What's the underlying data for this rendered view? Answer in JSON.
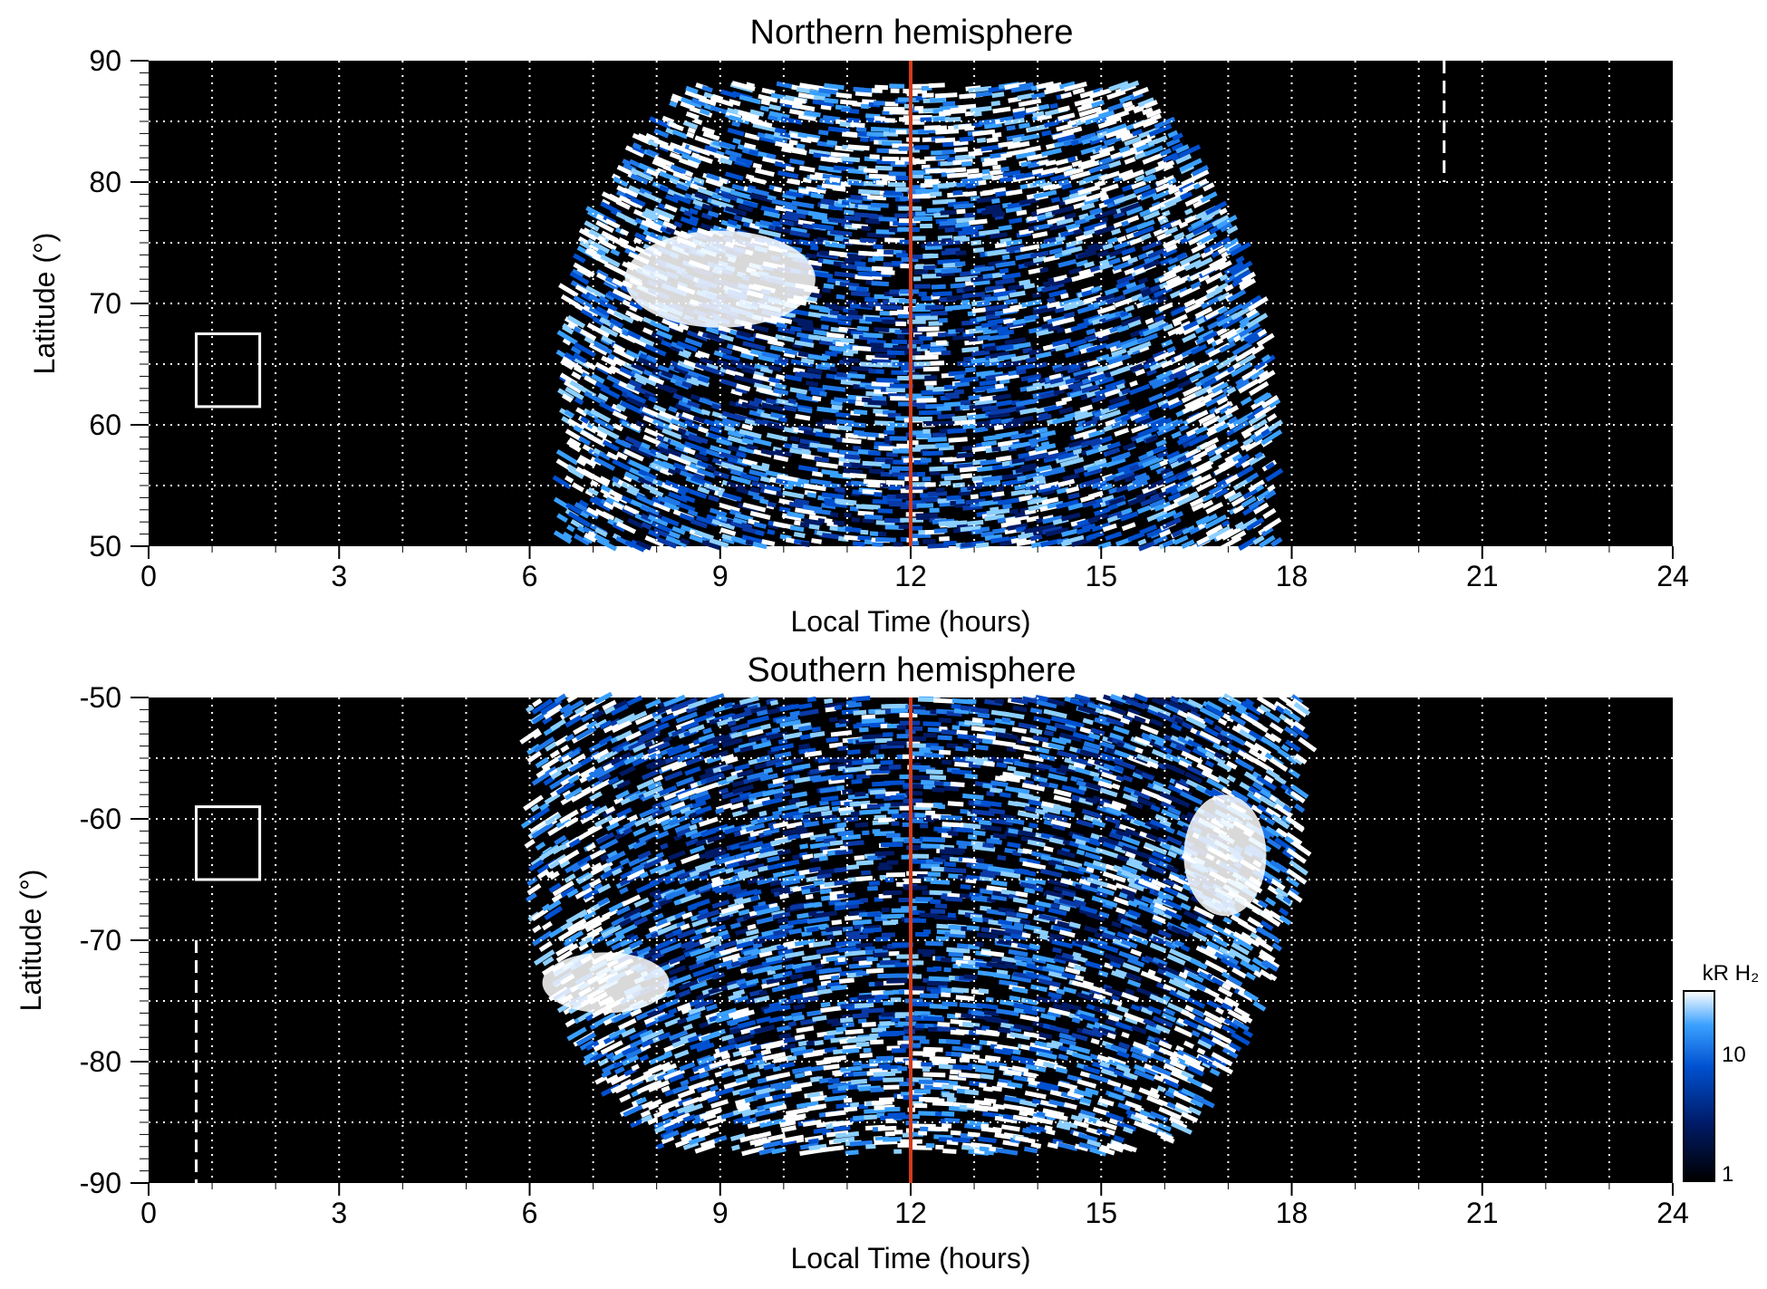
{
  "chart_data": [
    {
      "type": "heatmap",
      "title": "Northern hemisphere",
      "xlabel": "Local Time (hours)",
      "ylabel": "Latitude (°)",
      "xlim": [
        0,
        24
      ],
      "ylim": [
        50,
        90
      ],
      "x_ticks": [
        "0",
        "3",
        "6",
        "9",
        "12",
        "15",
        "18",
        "21",
        "24"
      ],
      "y_ticks": [
        "50",
        "60",
        "70",
        "80",
        "90"
      ],
      "grid": true,
      "background": "#000000",
      "emission_extent": {
        "local_time": [
          6.5,
          18.1
        ],
        "latitude": [
          50,
          88
        ]
      },
      "reference_line": {
        "local_time": 12,
        "color": "#d43a1a"
      },
      "dashed_line": {
        "local_time": 20.4,
        "latitude": [
          80,
          90
        ]
      },
      "box": {
        "local_time": [
          0.75,
          1.75
        ],
        "latitude": [
          61.5,
          67.5
        ]
      },
      "bright_regions": [
        {
          "local_time": [
            7.5,
            10.5
          ],
          "latitude": [
            68,
            76
          ]
        }
      ]
    },
    {
      "type": "heatmap",
      "title": "Southern hemisphere",
      "xlabel": "Local Time (hours)",
      "ylabel": "Latitude (°)",
      "xlim": [
        0,
        24
      ],
      "ylim": [
        -90,
        -50
      ],
      "x_ticks": [
        "0",
        "3",
        "6",
        "9",
        "12",
        "15",
        "18",
        "21",
        "24"
      ],
      "y_ticks": [
        "-90",
        "-80",
        "-70",
        "-60",
        "-50"
      ],
      "grid": true,
      "background": "#000000",
      "emission_extent": {
        "local_time": [
          6.0,
          18.5
        ],
        "latitude": [
          -87.5,
          -50
        ]
      },
      "reference_line": {
        "local_time": 12,
        "color": "#d43a1a"
      },
      "dashed_line": {
        "local_time": 0.75,
        "latitude": [
          -90,
          -70
        ]
      },
      "box": {
        "local_time": [
          0.75,
          1.75
        ],
        "latitude": [
          -65,
          -59
        ]
      },
      "bright_regions": [
        {
          "local_time": [
            6.2,
            8.2
          ],
          "latitude": [
            -76,
            -71
          ]
        },
        {
          "local_time": [
            16.3,
            17.6
          ],
          "latitude": [
            -68,
            -58
          ]
        }
      ]
    }
  ],
  "colorbar": {
    "title": "kR H₂",
    "scale": "log",
    "range": [
      1,
      30
    ],
    "tick_labels": [
      "1",
      "10"
    ],
    "colors": [
      "#000000",
      "#001a66",
      "#0050d0",
      "#3aa0ff",
      "#ffffff"
    ]
  }
}
